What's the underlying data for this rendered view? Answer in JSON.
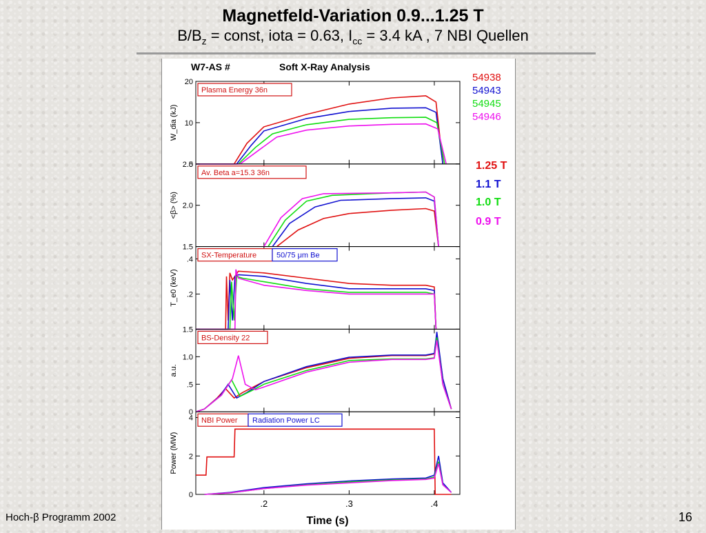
{
  "slide": {
    "title": "Magnetfeld-Variation 0.9...1.25 T",
    "subtitle_main": "B/B",
    "subtitle_sub_z": "z",
    "subtitle_mid": " = const, iota = 0.63, I",
    "subtitle_sub_cc": "cc",
    "subtitle_end": " = 3.4 kA , 7 NBI Quellen",
    "footer_left": "Hoch-β Programm 2002",
    "page_number": "16"
  },
  "chart_data": {
    "type": "line",
    "header_left": "W7-AS #",
    "header_right": "Soft X-Ray Analysis",
    "xlabel": "Time (s)",
    "xlim": [
      0.12,
      0.43
    ],
    "xticks": [
      0.2,
      0.3,
      0.4
    ],
    "xtick_labels": [
      ".2",
      ".3",
      ".4"
    ],
    "shots": [
      {
        "number": "54938",
        "color": "#e01010",
        "field": "1.25 T"
      },
      {
        "number": "54943",
        "color": "#1010d0",
        "field": "1.1 T"
      },
      {
        "number": "54945",
        "color": "#10dd10",
        "field": "1.0 T"
      },
      {
        "number": "54946",
        "color": "#ee10ee",
        "field": "0.9 T"
      }
    ],
    "panels": [
      {
        "label": "Plasma Energy  36n",
        "label2": "",
        "ylabel": "W_dia (kJ)",
        "ylim": [
          0,
          20
        ],
        "yticks": [
          0,
          10,
          20
        ],
        "ytick_labels": [
          "0",
          "10",
          "20"
        ],
        "series": [
          {
            "shot": "54938",
            "x": [
              0.12,
              0.165,
              0.18,
              0.2,
              0.25,
              0.3,
              0.35,
              0.39,
              0.402,
              0.41
            ],
            "y": [
              0,
              0,
              5,
              9,
              12,
              14.5,
              16,
              16.5,
              15,
              0
            ]
          },
          {
            "shot": "54943",
            "x": [
              0.12,
              0.168,
              0.185,
              0.2,
              0.25,
              0.3,
              0.35,
              0.39,
              0.402,
              0.41
            ],
            "y": [
              0,
              0,
              4.5,
              8,
              11,
              12.7,
              13.5,
              13.6,
              12.5,
              0
            ]
          },
          {
            "shot": "54945",
            "x": [
              0.12,
              0.17,
              0.19,
              0.21,
              0.25,
              0.3,
              0.35,
              0.39,
              0.403,
              0.412
            ],
            "y": [
              0,
              0,
              4,
              7.3,
              9.5,
              10.8,
              11.2,
              11.3,
              10,
              0
            ]
          },
          {
            "shot": "54946",
            "x": [
              0.12,
              0.172,
              0.195,
              0.215,
              0.25,
              0.3,
              0.35,
              0.39,
              0.404,
              0.414
            ],
            "y": [
              0,
              0,
              3.5,
              6.5,
              8.2,
              9.2,
              9.6,
              9.7,
              8.5,
              0
            ]
          }
        ]
      },
      {
        "label": "Av. Beta  a=15.3  36n",
        "label2": "",
        "ylabel": "<β> (%)",
        "ylim": [
          1.5,
          2.5
        ],
        "yticks": [
          1.5,
          2.0,
          2.5
        ],
        "ytick_labels": [
          "1.5",
          "2.0",
          "2.5"
        ],
        "series": [
          {
            "shot": "54938",
            "x": [
              0.215,
              0.24,
              0.27,
              0.3,
              0.35,
              0.39,
              0.4,
              0.405
            ],
            "y": [
              1.5,
              1.7,
              1.84,
              1.9,
              1.94,
              1.96,
              1.93,
              1.5
            ]
          },
          {
            "shot": "54943",
            "x": [
              0.21,
              0.23,
              0.26,
              0.29,
              0.35,
              0.39,
              0.4,
              0.405
            ],
            "y": [
              1.5,
              1.78,
              1.98,
              2.06,
              2.08,
              2.09,
              2.05,
              1.5
            ]
          },
          {
            "shot": "54945",
            "x": [
              0.205,
              0.225,
              0.25,
              0.28,
              0.35,
              0.39,
              0.4,
              0.405
            ],
            "y": [
              1.5,
              1.82,
              2.05,
              2.12,
              2.15,
              2.16,
              2.1,
              1.5
            ]
          },
          {
            "shot": "54946",
            "x": [
              0.2,
              0.22,
              0.245,
              0.27,
              0.35,
              0.39,
              0.4,
              0.405
            ],
            "y": [
              1.5,
              1.85,
              2.08,
              2.14,
              2.15,
              2.16,
              2.1,
              1.5
            ]
          }
        ]
      },
      {
        "label": "SX-Temperature",
        "label2": "50/75  μm Be",
        "ylabel": "T_e0 (keV)",
        "ylim": [
          0,
          0.47
        ],
        "yticks": [
          0.2,
          0.4
        ],
        "ytick_labels": [
          ".2",
          ".4"
        ],
        "series": [
          {
            "shot": "54938",
            "x": [
              0.12,
              0.155,
              0.156,
              0.158,
              0.16,
              0.163,
              0.17,
              0.2,
              0.25,
              0.3,
              0.35,
              0.39,
              0.4,
              0.402
            ],
            "y": [
              0,
              0,
              0.3,
              0.05,
              0.32,
              0.28,
              0.33,
              0.32,
              0.29,
              0.26,
              0.25,
              0.25,
              0.24,
              0
            ]
          },
          {
            "shot": "54943",
            "x": [
              0.12,
              0.158,
              0.16,
              0.163,
              0.166,
              0.17,
              0.2,
              0.25,
              0.3,
              0.35,
              0.39,
              0.4,
              0.402
            ],
            "y": [
              0,
              0,
              0.28,
              0.05,
              0.3,
              0.31,
              0.3,
              0.26,
              0.23,
              0.23,
              0.23,
              0.22,
              0
            ]
          },
          {
            "shot": "54945",
            "x": [
              0.12,
              0.16,
              0.162,
              0.165,
              0.168,
              0.175,
              0.2,
              0.25,
              0.3,
              0.35,
              0.39,
              0.4,
              0.402
            ],
            "y": [
              0,
              0,
              0.27,
              0.05,
              0.3,
              0.29,
              0.27,
              0.23,
              0.21,
              0.21,
              0.21,
              0.2,
              0
            ]
          },
          {
            "shot": "54946",
            "x": [
              0.12,
              0.166,
              0.167,
              0.17,
              0.2,
              0.25,
              0.3,
              0.35,
              0.39,
              0.4,
              0.402
            ],
            "y": [
              0,
              0,
              0.34,
              0.29,
              0.25,
              0.22,
              0.2,
              0.2,
              0.2,
              0.2,
              0
            ]
          }
        ]
      },
      {
        "label": "BS-Density 22",
        "label2": "",
        "ylabel": "a.u.",
        "ylim": [
          0,
          1.5
        ],
        "yticks": [
          0,
          0.5,
          1.0,
          1.5
        ],
        "ytick_labels": [
          "0",
          ".5",
          "1.0",
          "1.5"
        ],
        "series": [
          {
            "shot": "54938",
            "x": [
              0.12,
              0.13,
              0.145,
              0.155,
              0.165,
              0.175,
              0.2,
              0.25,
              0.3,
              0.35,
              0.39,
              0.4,
              0.403,
              0.41,
              0.42
            ],
            "y": [
              0,
              0.05,
              0.25,
              0.42,
              0.25,
              0.35,
              0.55,
              0.8,
              0.97,
              1.02,
              1.02,
              1.05,
              1.4,
              0.6,
              0.05
            ]
          },
          {
            "shot": "54943",
            "x": [
              0.12,
              0.13,
              0.148,
              0.158,
              0.168,
              0.18,
              0.2,
              0.25,
              0.3,
              0.35,
              0.39,
              0.4,
              0.403,
              0.41,
              0.42
            ],
            "y": [
              0,
              0.05,
              0.28,
              0.5,
              0.25,
              0.35,
              0.55,
              0.82,
              0.99,
              1.03,
              1.03,
              1.06,
              1.45,
              0.6,
              0.05
            ]
          },
          {
            "shot": "54945",
            "x": [
              0.12,
              0.13,
              0.15,
              0.162,
              0.172,
              0.185,
              0.2,
              0.25,
              0.3,
              0.35,
              0.39,
              0.4,
              0.403,
              0.41,
              0.42
            ],
            "y": [
              0,
              0.05,
              0.3,
              0.58,
              0.28,
              0.38,
              0.5,
              0.75,
              0.93,
              0.96,
              0.96,
              0.98,
              1.35,
              0.5,
              0.05
            ]
          },
          {
            "shot": "54946",
            "x": [
              0.12,
              0.13,
              0.15,
              0.163,
              0.17,
              0.178,
              0.19,
              0.2,
              0.25,
              0.3,
              0.35,
              0.39,
              0.4,
              0.403,
              0.41,
              0.42
            ],
            "y": [
              0,
              0.05,
              0.3,
              0.6,
              1.02,
              0.5,
              0.4,
              0.45,
              0.72,
              0.9,
              0.95,
              0.95,
              0.97,
              1.3,
              0.5,
              0.05
            ]
          }
        ]
      },
      {
        "label": "NBI Power",
        "label2": "Radiation Power LC",
        "ylabel": "Power (MW)",
        "ylim": [
          0,
          4.3
        ],
        "yticks": [
          0,
          2,
          4
        ],
        "ytick_labels": [
          "0",
          "2",
          "4"
        ],
        "series": [
          {
            "shot": "54938",
            "x": [
              0.12,
              0.132,
              0.133,
              0.165,
              0.166,
              0.4,
              0.401,
              0.42
            ],
            "y": [
              1.0,
              1.0,
              1.95,
              1.95,
              3.4,
              3.4,
              0,
              0
            ]
          },
          {
            "shot": "54943",
            "x": [
              0.13,
              0.16,
              0.2,
              0.25,
              0.3,
              0.35,
              0.39,
              0.4,
              0.405,
              0.41,
              0.42
            ],
            "y": [
              0,
              0.1,
              0.35,
              0.55,
              0.7,
              0.8,
              0.85,
              1.0,
              2.0,
              0.6,
              0.1
            ]
          },
          {
            "shot": "54945",
            "x": [
              0.13,
              0.16,
              0.2,
              0.25,
              0.3,
              0.35,
              0.39,
              0.4,
              0.405,
              0.41,
              0.42
            ],
            "y": [
              0,
              0.08,
              0.3,
              0.5,
              0.65,
              0.75,
              0.8,
              0.9,
              1.7,
              0.5,
              0.1
            ]
          },
          {
            "shot": "54946",
            "x": [
              0.13,
              0.16,
              0.2,
              0.25,
              0.3,
              0.35,
              0.39,
              0.4,
              0.405,
              0.41,
              0.42
            ],
            "y": [
              0,
              0.08,
              0.3,
              0.48,
              0.6,
              0.72,
              0.78,
              0.85,
              1.6,
              0.5,
              0.1
            ]
          }
        ]
      }
    ]
  }
}
